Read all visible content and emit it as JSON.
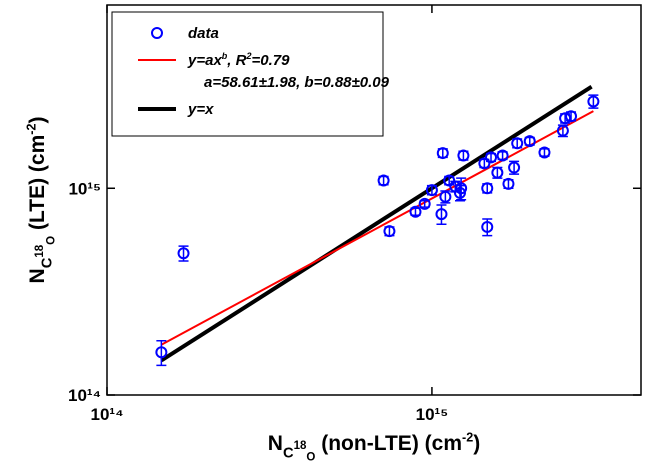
{
  "chart_data": {
    "type": "scatter",
    "xlabel": [
      {
        "text": "N"
      },
      {
        "text": "C",
        "shift": "sub"
      },
      {
        "text": "18",
        "shift": "subsup"
      },
      {
        "text": "O",
        "shift": "subsub"
      },
      {
        "text": " (non-LTE) (cm"
      },
      {
        "text": "-2",
        "shift": "sup"
      },
      {
        "text": ")"
      }
    ],
    "ylabel": [
      {
        "text": "N"
      },
      {
        "text": "C",
        "shift": "sub"
      },
      {
        "text": "18",
        "shift": "subsup"
      },
      {
        "text": "O",
        "shift": "subsub"
      },
      {
        "text": " (LTE) (cm"
      },
      {
        "text": "-2",
        "shift": "sup"
      },
      {
        "text": ")"
      }
    ],
    "xscale": "log",
    "yscale": "log",
    "xlim": [
      100000000000000.0,
      4400000000000000.0
    ],
    "ylim": [
      100000000000000.0,
      7700000000000000.0
    ],
    "xticks": [
      {
        "value": 100000000000000.0,
        "label": "10¹⁴"
      },
      {
        "value": 1000000000000000.0,
        "label": "10¹⁵"
      }
    ],
    "yticks": [
      {
        "value": 100000000000000.0,
        "label": "10¹⁴"
      },
      {
        "value": 1000000000000000.0,
        "label": "10¹⁵"
      }
    ],
    "legend": "upper left",
    "series": [
      {
        "name": "data",
        "kind": "points",
        "color": "#0000ff",
        "x": [
          147000000000000.0,
          172000000000000.0,
          710000000000000.0,
          740000000000000.0,
          890000000000000.0,
          950000000000000.0,
          1000000000000000.0,
          1070000000000000.0,
          1080000000000000.0,
          1100000000000000.0,
          1130000000000000.0,
          1180000000000000.0,
          1220000000000000.0,
          1250000000000000.0,
          1230000000000000.0,
          1450000000000000.0,
          1480000000000000.0,
          1480000000000000.0,
          1520000000000000.0,
          1590000000000000.0,
          1650000000000000.0,
          1720000000000000.0,
          1790000000000000.0,
          1830000000000000.0,
          2000000000000000.0,
          2220000000000000.0,
          2530000000000000.0,
          2570000000000000.0,
          2680000000000000.0,
          3140000000000000.0
        ],
        "values": [
          161000000000000.0,
          485000000000000.0,
          1090000000000000.0,
          620000000000000.0,
          770000000000000.0,
          840000000000000.0,
          980000000000000.0,
          750000000000000.0,
          1480000000000000.0,
          910000000000000.0,
          1090000000000000.0,
          1020000000000000.0,
          950000000000000.0,
          1440000000000000.0,
          1000000000000000.0,
          1320000000000000.0,
          650000000000000.0,
          1000000000000000.0,
          1410000000000000.0,
          1190000000000000.0,
          1440000000000000.0,
          1050000000000000.0,
          1260000000000000.0,
          1650000000000000.0,
          1690000000000000.0,
          1490000000000000.0,
          1900000000000000.0,
          2180000000000000.0,
          2230000000000000.0,
          2630000000000000.0
        ],
        "errors": [
          22000000000000.0,
          40000000000000.0,
          50000000000000.0,
          30000000000000.0,
          30000000000000.0,
          30000000000000.0,
          50000000000000.0,
          80000000000000.0,
          70000000000000.0,
          60000000000000.0,
          50000000000000.0,
          60000000000000.0,
          80000000000000.0,
          70000000000000.0,
          120000000000000.0,
          60000000000000.0,
          60000000000000.0,
          50000000000000.0,
          60000000000000.0,
          70000000000000.0,
          60000000000000.0,
          50000000000000.0,
          90000000000000.0,
          80000000000000.0,
          70000000000000.0,
          60000000000000.0,
          120000000000000.0,
          110000000000000.0,
          110000000000000.0,
          190000000000000.0
        ]
      },
      {
        "name": [
          {
            "text": "y=ax"
          },
          {
            "text": "b",
            "shift": "sup"
          },
          {
            "text": ", R"
          },
          {
            "text": "2",
            "shift": "sup"
          },
          {
            "text": "=0.79"
          }
        ],
        "name_line2": "a=58.61±1.98, b=0.88±0.09",
        "kind": "line",
        "color": "#ff0000",
        "width": 2,
        "x": [
          147000000000000.0,
          3140000000000000.0
        ],
        "values": [
          175000000000000.0,
          2360000000000000.0
        ]
      },
      {
        "name": "y=x",
        "kind": "line",
        "color": "#000000",
        "width": 4,
        "x": [
          147000000000000.0,
          3100000000000000.0
        ],
        "values": [
          147000000000000.0,
          3100000000000000.0
        ]
      }
    ]
  }
}
